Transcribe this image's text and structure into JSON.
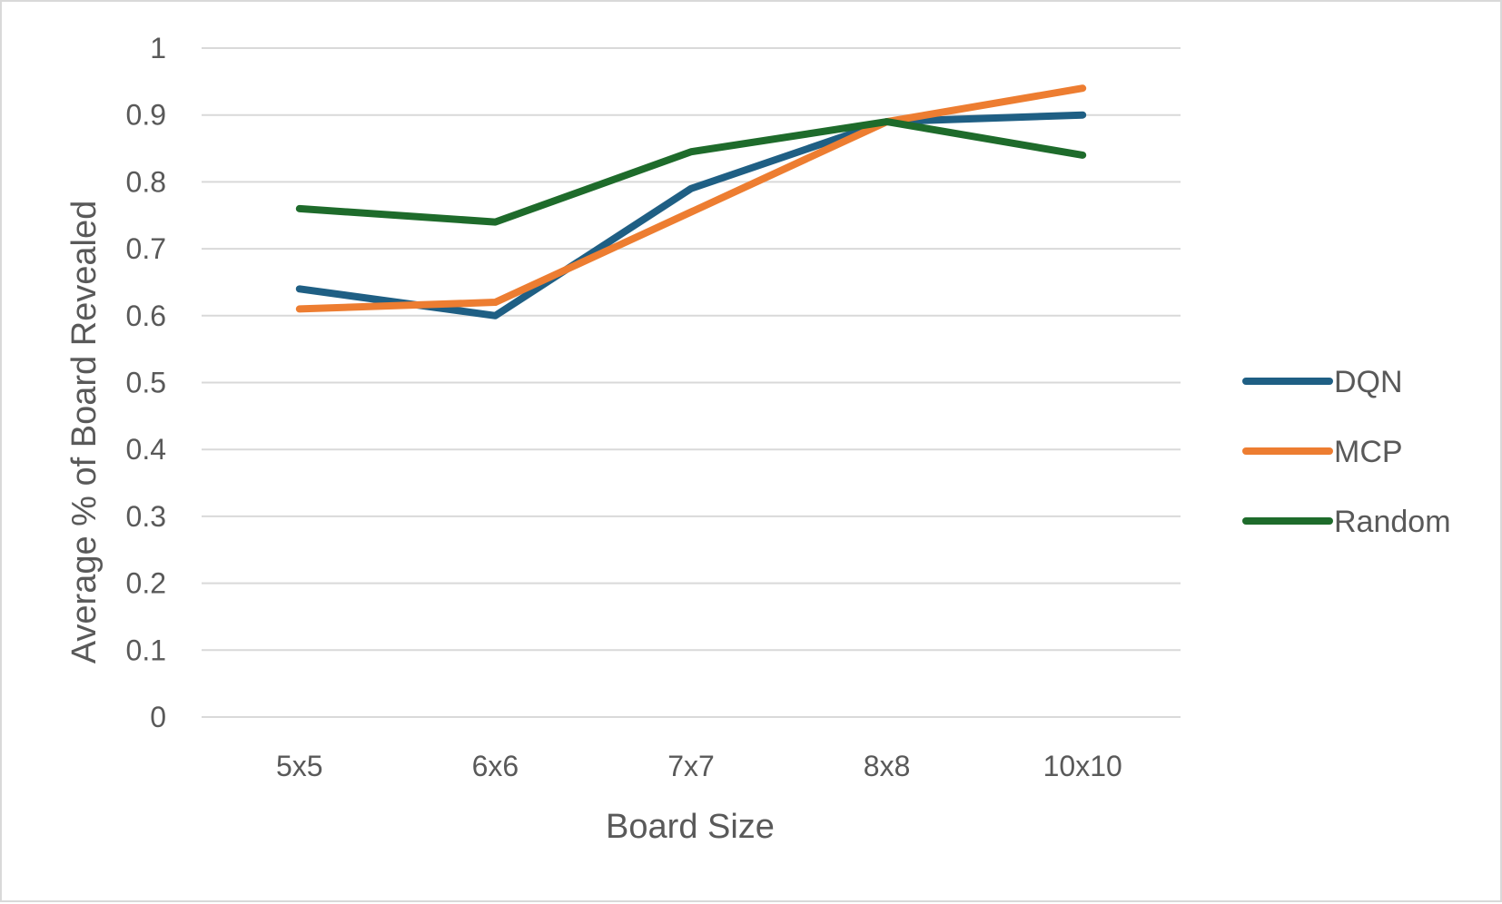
{
  "chart_data": {
    "type": "line",
    "title": "",
    "xlabel": "Board Size",
    "ylabel": "Average % of Board Revealed",
    "categories": [
      "5x5",
      "6x6",
      "7x7",
      "8x8",
      "10x10"
    ],
    "ylim": [
      0,
      1
    ],
    "yticks": [
      "0",
      "0.1",
      "0.2",
      "0.3",
      "0.4",
      "0.5",
      "0.6",
      "0.7",
      "0.8",
      "0.9",
      "1"
    ],
    "grid": true,
    "legend_position": "right",
    "series": [
      {
        "name": "DQN",
        "color": "#1f5f84",
        "values": [
          0.64,
          0.6,
          0.79,
          0.89,
          0.9
        ]
      },
      {
        "name": "MCP",
        "color": "#ed7d31",
        "values": [
          0.61,
          0.62,
          0.755,
          0.89,
          0.94
        ]
      },
      {
        "name": "Random",
        "color": "#1e6b2b",
        "values": [
          0.76,
          0.74,
          0.845,
          0.89,
          0.84
        ]
      }
    ]
  }
}
